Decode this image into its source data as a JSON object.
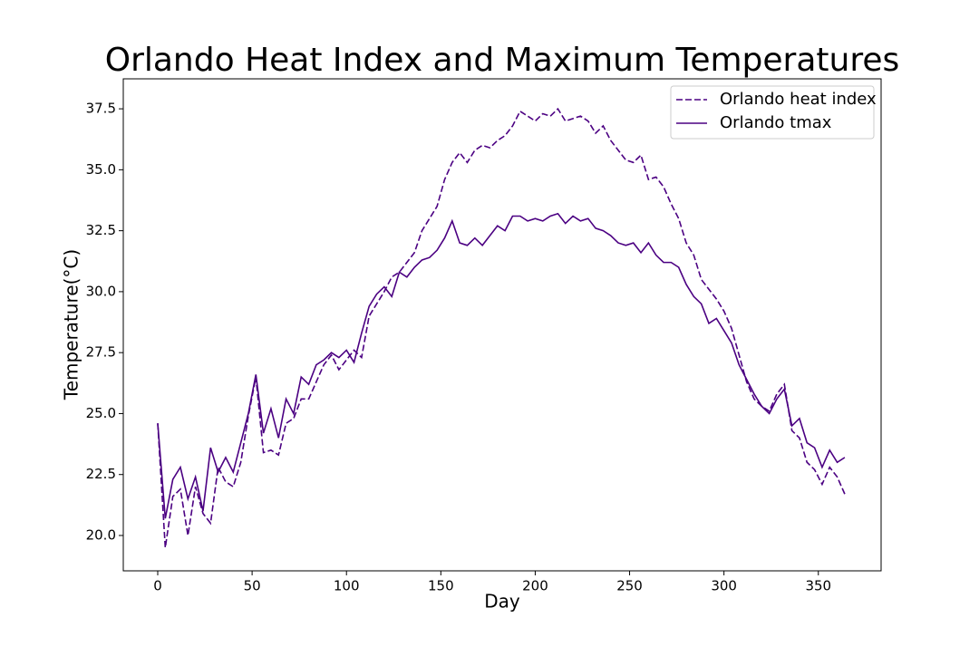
{
  "chart_data": {
    "type": "line",
    "title": "Orlando Heat Index and Maximum Temperatures",
    "xlabel": "Day",
    "ylabel": "Temperature(°C)",
    "x": [
      0,
      4,
      8,
      12,
      16,
      20,
      24,
      28,
      32,
      36,
      40,
      44,
      48,
      52,
      56,
      60,
      64,
      68,
      72,
      76,
      80,
      84,
      88,
      92,
      96,
      100,
      104,
      108,
      112,
      116,
      120,
      124,
      128,
      132,
      136,
      140,
      144,
      148,
      152,
      156,
      160,
      164,
      168,
      172,
      176,
      180,
      184,
      188,
      192,
      196,
      200,
      204,
      208,
      212,
      216,
      220,
      224,
      228,
      232,
      236,
      240,
      244,
      248,
      252,
      256,
      260,
      264,
      268,
      272,
      276,
      280,
      284,
      288,
      292,
      296,
      300,
      304,
      308,
      312,
      316,
      320,
      324,
      328,
      332,
      336,
      340,
      344,
      348,
      352,
      356,
      360,
      364
    ],
    "series": [
      {
        "name": "Orlando heat index",
        "color": "#4b0082",
        "linestyle": "dashed",
        "values": [
          24.6,
          19.5,
          21.6,
          21.9,
          20.0,
          22.0,
          20.9,
          20.5,
          22.8,
          22.2,
          22.0,
          23.0,
          24.9,
          26.5,
          23.4,
          23.5,
          23.3,
          24.6,
          24.8,
          25.6,
          25.6,
          26.3,
          27.0,
          27.4,
          26.8,
          27.2,
          27.6,
          27.3,
          29.0,
          29.5,
          30.0,
          30.6,
          30.8,
          31.2,
          31.6,
          32.5,
          33.0,
          33.5,
          34.6,
          35.3,
          35.7,
          35.3,
          35.8,
          36.0,
          35.9,
          36.2,
          36.4,
          36.8,
          37.4,
          37.2,
          37.0,
          37.3,
          37.2,
          37.5,
          37.0,
          37.1,
          37.2,
          37.0,
          36.5,
          36.8,
          36.2,
          35.8,
          35.4,
          35.3,
          35.6,
          34.6,
          34.7,
          34.3,
          33.6,
          33.0,
          32.0,
          31.5,
          30.5,
          30.1,
          29.7,
          29.2,
          28.5,
          27.4,
          26.3,
          25.6,
          25.3,
          25.1,
          25.8,
          26.2,
          24.3,
          24.0,
          23.0,
          22.7,
          22.1,
          22.8,
          22.4,
          21.7
        ]
      },
      {
        "name": "Orlando tmax",
        "color": "#4b0082",
        "linestyle": "solid",
        "values": [
          24.6,
          20.7,
          22.3,
          22.8,
          21.5,
          22.4,
          21.0,
          23.6,
          22.6,
          23.2,
          22.6,
          23.8,
          25.0,
          26.6,
          24.2,
          25.2,
          24.0,
          25.6,
          25.0,
          26.5,
          26.2,
          27.0,
          27.2,
          27.5,
          27.3,
          27.6,
          27.1,
          28.3,
          29.4,
          29.9,
          30.2,
          29.8,
          30.8,
          30.6,
          31.0,
          31.3,
          31.4,
          31.7,
          32.2,
          32.9,
          32.0,
          31.9,
          32.2,
          31.9,
          32.3,
          32.7,
          32.5,
          33.1,
          33.1,
          32.9,
          33.0,
          32.9,
          33.1,
          33.2,
          32.8,
          33.1,
          32.9,
          33.0,
          32.6,
          32.5,
          32.3,
          32.0,
          31.9,
          32.0,
          31.6,
          32.0,
          31.5,
          31.2,
          31.2,
          31.0,
          30.3,
          29.8,
          29.5,
          28.7,
          28.9,
          28.4,
          27.9,
          27.0,
          26.4,
          25.8,
          25.3,
          25.0,
          25.6,
          26.0,
          24.5,
          24.8,
          23.8,
          23.6,
          22.8,
          23.5,
          23.0,
          23.2
        ]
      }
    ],
    "xlim": [
      -18.25,
      383.25
    ],
    "xticks": [
      0,
      50,
      100,
      150,
      200,
      250,
      300,
      350
    ],
    "ylim": [
      18.55,
      38.73
    ],
    "yticks": [
      {
        "value": 20,
        "label": "20.0"
      },
      22.5,
      {
        "value": 25,
        "label": "25.0"
      },
      27.5,
      {
        "value": 30,
        "label": "30.0"
      },
      32.5,
      {
        "value": 35,
        "label": "35.0"
      },
      37.5
    ],
    "grid": false,
    "legend": "upper right"
  }
}
